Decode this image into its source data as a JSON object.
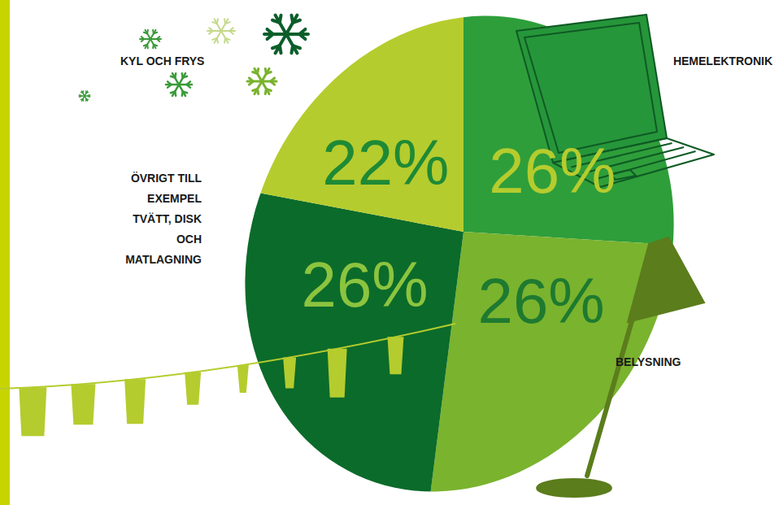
{
  "chart_data": {
    "type": "pie",
    "categories": [
      "HEMELEKTRONIK",
      "BELYSNING",
      "ÖVRIGT TILL EXEMPEL TVÄTT, DISK OCH MATLAGNING",
      "KYL OCH FRYS"
    ],
    "values": [
      26,
      26,
      26,
      22
    ],
    "value_labels": [
      "26%",
      "26%",
      "26%",
      "22%"
    ],
    "colors": [
      "#2e9e3a",
      "#7ab32e",
      "#0b6b2a",
      "#b5cc2e"
    ],
    "data_labels": true
  }
}
